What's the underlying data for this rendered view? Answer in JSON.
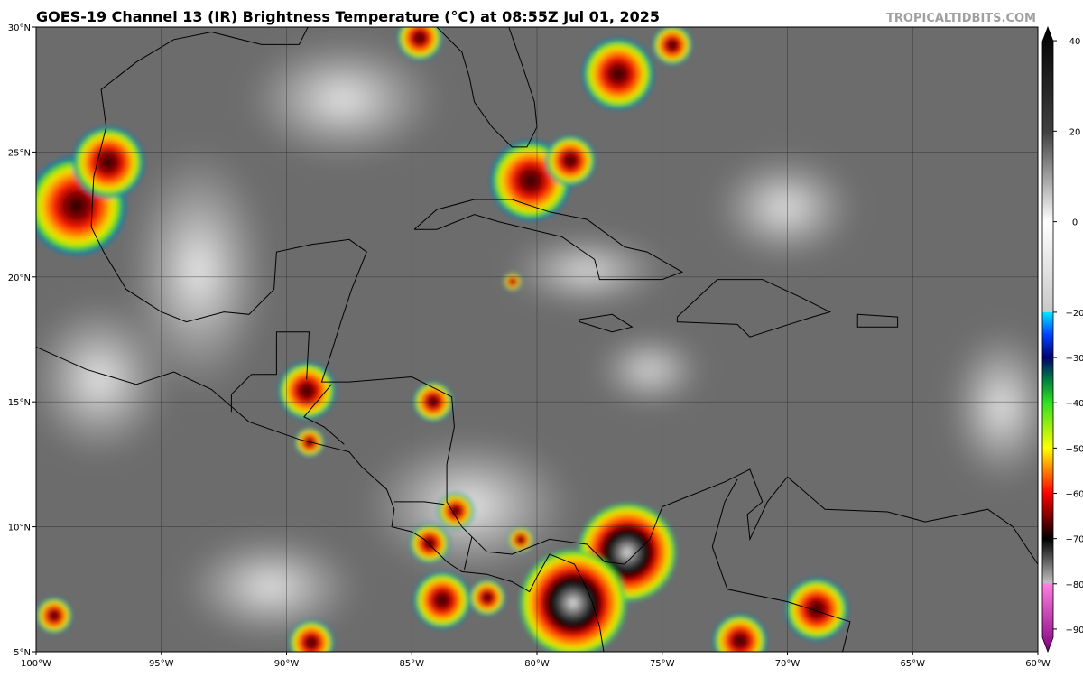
{
  "header": {
    "title": "GOES-19 Channel 13 (IR) Brightness Temperature (°C) at 08:55Z Jul 01, 2025",
    "credit": "TROPICALTIDBITS.COM"
  },
  "map": {
    "lon_lim": [
      -100,
      -60
    ],
    "lat_lim": [
      5,
      30
    ],
    "lon_ticks": [
      {
        "value": -100,
        "label": "100°W"
      },
      {
        "value": -95,
        "label": "95°W"
      },
      {
        "value": -90,
        "label": "90°W"
      },
      {
        "value": -85,
        "label": "85°W"
      },
      {
        "value": -80,
        "label": "80°W"
      },
      {
        "value": -75,
        "label": "75°W"
      },
      {
        "value": -70,
        "label": "70°W"
      },
      {
        "value": -65,
        "label": "65°W"
      },
      {
        "value": -60,
        "label": "60°W"
      }
    ],
    "lat_ticks": [
      {
        "value": 5,
        "label": "5°N"
      },
      {
        "value": 10,
        "label": "10°N"
      },
      {
        "value": 15,
        "label": "15°N"
      },
      {
        "value": 20,
        "label": "20°N"
      },
      {
        "value": 25,
        "label": "25°N"
      },
      {
        "value": 30,
        "label": "30°N"
      }
    ]
  },
  "colorbar": {
    "lim": [
      -95,
      43
    ],
    "ticks": [
      40,
      20,
      0,
      {
        "value": -20,
        "label": "−20"
      },
      {
        "value": -30,
        "label": "−30"
      },
      {
        "value": -40,
        "label": "−40"
      },
      {
        "value": -50,
        "label": "−50"
      },
      {
        "value": -60,
        "label": "−60"
      },
      {
        "value": -70,
        "label": "−70"
      },
      {
        "value": -80,
        "label": "−80"
      },
      {
        "value": -90,
        "label": "−90"
      }
    ]
  }
}
